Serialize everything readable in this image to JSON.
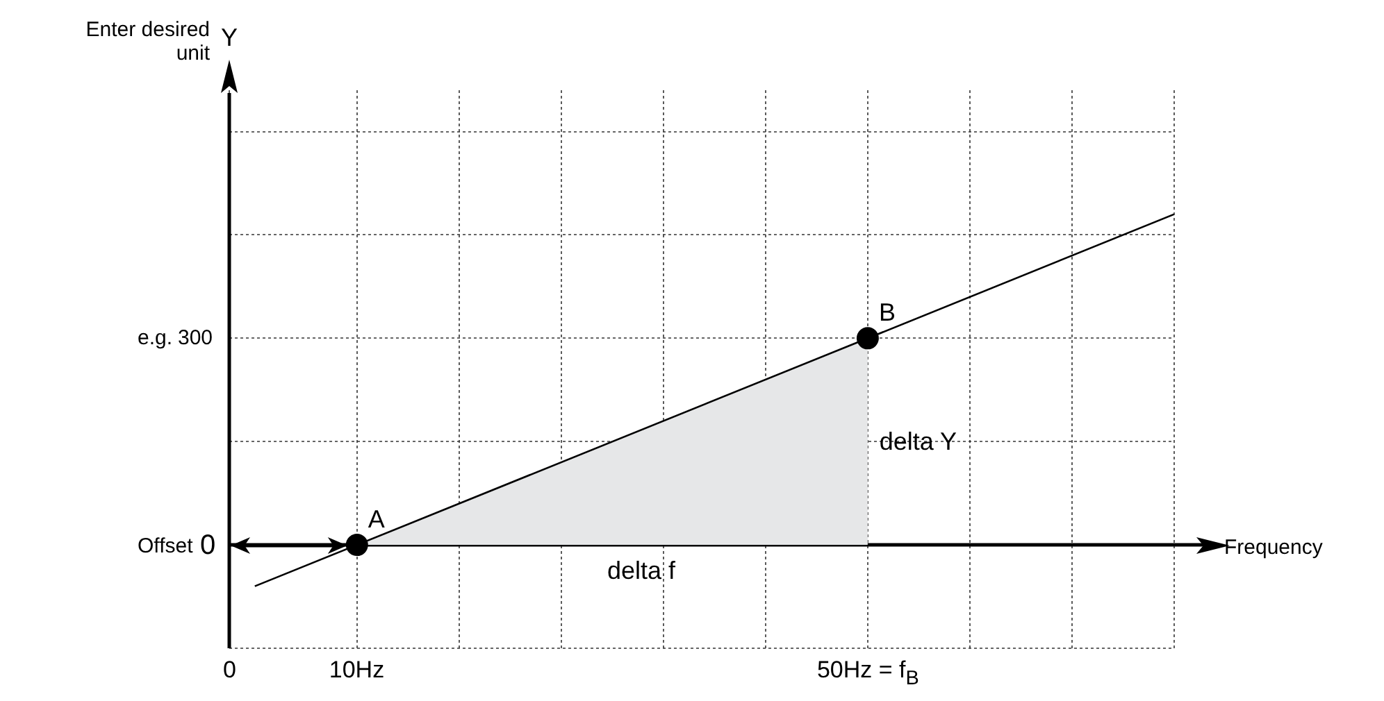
{
  "chart_data": {
    "type": "line",
    "xlabel": "Frequency",
    "ylabel": "Y",
    "annotations": [
      "Enter desired unit",
      "Offset",
      "e.g.",
      "delta Y",
      "delta f",
      {
        "text": "A",
        "x": 10,
        "y": 0
      },
      {
        "text": "B",
        "x": 50,
        "y": 300
      }
    ],
    "xlim": [
      0,
      74
    ],
    "xticks": [
      {
        "value": 0,
        "label": "0"
      },
      {
        "value": 10,
        "label": "10Hz"
      },
      {
        "value": 18,
        "label": null
      },
      {
        "value": 26,
        "label": null
      },
      {
        "value": 34,
        "label": null
      },
      {
        "value": 42,
        "label": null
      },
      {
        "value": 50,
        "label": "50Hz = f$_{B}$"
      },
      {
        "value": 58,
        "label": null
      },
      {
        "value": 66,
        "label": null
      },
      {
        "value": 74,
        "label": null
      }
    ],
    "ylim": [
      -150,
      660
    ],
    "yticks": [
      {
        "value": -150,
        "label": null
      },
      0,
      {
        "value": 150,
        "label": null
      },
      300,
      {
        "value": 450,
        "label": null
      },
      {
        "value": 600,
        "label": null
      }
    ],
    "grid": true,
    "legend": false,
    "marker": "circle",
    "series": [
      {
        "color": "#000000",
        "x": [
          2,
          74
        ],
        "values": [
          -60,
          480
        ],
        "marker": "none"
      },
      {
        "type": "area",
        "color": "#e6e7e8",
        "x": [
          10,
          50
        ],
        "values": [
          0,
          300
        ],
        "marker": "none"
      },
      {
        "type": "scatter",
        "color": "#000000",
        "x": [
          10,
          50
        ],
        "values": [
          0,
          300
        ]
      }
    ]
  }
}
